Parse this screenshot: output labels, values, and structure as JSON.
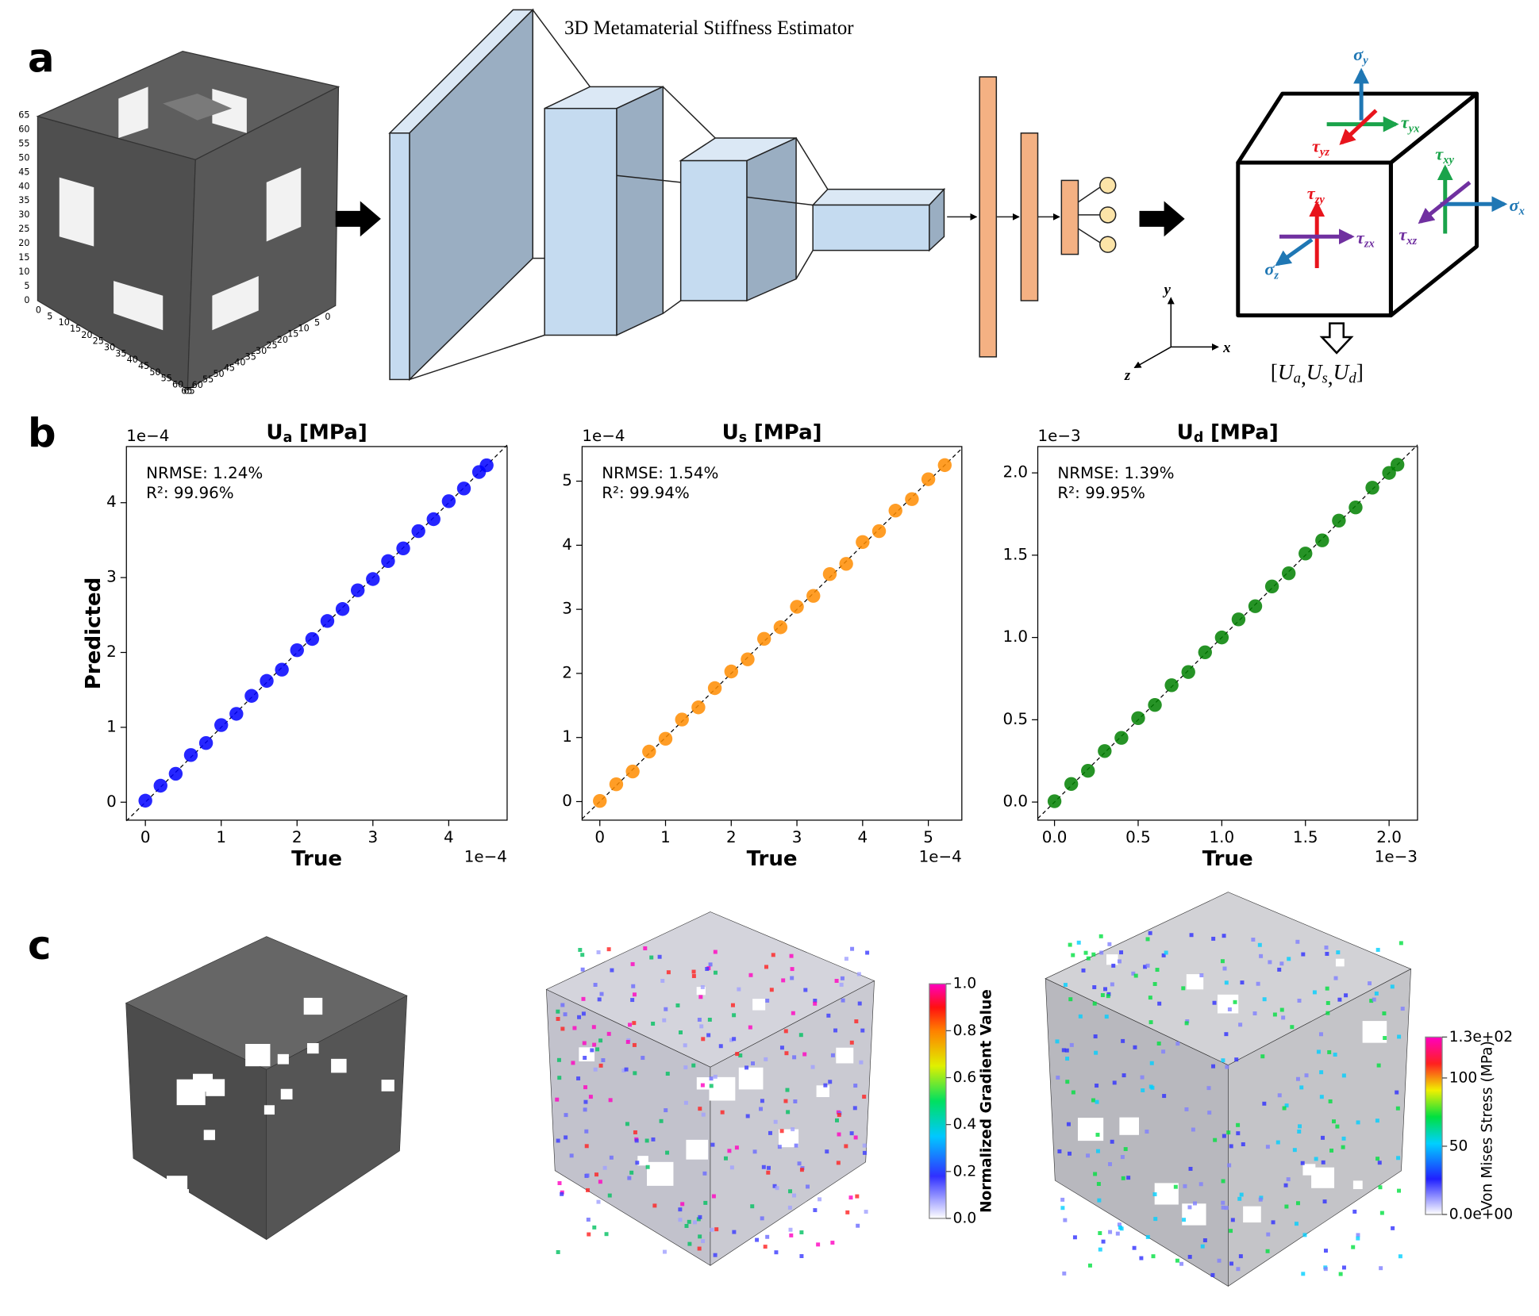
{
  "panel_a": {
    "label": "a",
    "network_title": "3D Metamaterial Stiffness Estimator",
    "cube_ticks": [
      0,
      5,
      10,
      15,
      20,
      25,
      30,
      35,
      40,
      45,
      50,
      55,
      60,
      65
    ],
    "stress_labels": [
      {
        "sym": "σ",
        "sub": "y"
      },
      {
        "sym": "τ",
        "sub": "yx"
      },
      {
        "sym": "τ",
        "sub": "yz"
      },
      {
        "sym": "τ",
        "sub": "xy"
      },
      {
        "sym": "σ",
        "sub": "x"
      },
      {
        "sym": "τ",
        "sub": "xz"
      },
      {
        "sym": "τ",
        "sub": "zy"
      },
      {
        "sym": "τ",
        "sub": "zx"
      },
      {
        "sym": "σ",
        "sub": "z"
      }
    ],
    "axes": [
      "x",
      "y",
      "z"
    ],
    "output": {
      "prefix": "[",
      "terms": [
        {
          "sym": "U",
          "sub": "a"
        },
        {
          "sym": "U",
          "sub": "s"
        },
        {
          "sym": "U",
          "sub": "d"
        }
      ],
      "separator": ",",
      "suffix": "]"
    }
  },
  "panel_b": {
    "label": "b"
  },
  "chart_data": [
    {
      "type": "scatter",
      "title": {
        "base": "U",
        "sub": "a",
        "unit": "[MPa]"
      },
      "xlabel": "True",
      "ylabel": "Predicted",
      "x_offset_label": "1e−4",
      "y_offset_label": "1e−4",
      "annotations": [
        "NRMSE: 1.24%",
        "R²: 99.96%"
      ],
      "color": "#0000ff",
      "x": [
        0,
        0.2,
        0.4,
        0.6,
        0.8,
        1.0,
        1.2,
        1.4,
        1.6,
        1.8,
        2.0,
        2.2,
        2.4,
        2.6,
        2.8,
        3.0,
        3.2,
        3.4,
        3.6,
        3.8,
        4.0,
        4.2,
        4.4,
        4.5
      ],
      "values": [
        0.02,
        0.22,
        0.38,
        0.63,
        0.79,
        1.03,
        1.18,
        1.42,
        1.62,
        1.77,
        2.03,
        2.18,
        2.42,
        2.58,
        2.83,
        2.98,
        3.22,
        3.39,
        3.62,
        3.78,
        4.02,
        4.19,
        4.41,
        4.5
      ],
      "xlim": [
        -0.25,
        4.77
      ],
      "ylim": [
        -0.24,
        4.75
      ],
      "xticks": [
        0,
        1,
        2,
        3,
        4
      ],
      "yticks": [
        0,
        1,
        2,
        3,
        4
      ]
    },
    {
      "type": "scatter",
      "title": {
        "base": "U",
        "sub": "s",
        "unit": "[MPa]"
      },
      "xlabel": "True",
      "x_offset_label": "1e−4",
      "y_offset_label": "1e−4",
      "annotations": [
        "NRMSE: 1.54%",
        "R²: 99.94%"
      ],
      "color": "#ff8c00",
      "x": [
        0,
        0.25,
        0.5,
        0.75,
        1,
        1.25,
        1.5,
        1.75,
        2,
        2.25,
        2.5,
        2.75,
        3,
        3.25,
        3.5,
        3.75,
        4,
        4.25,
        4.5,
        4.75,
        5,
        5.25
      ],
      "values": [
        0.01,
        0.27,
        0.47,
        0.78,
        0.98,
        1.28,
        1.47,
        1.77,
        2.03,
        2.22,
        2.54,
        2.72,
        3.04,
        3.21,
        3.55,
        3.71,
        4.05,
        4.22,
        4.54,
        4.72,
        5.03,
        5.25
      ],
      "xlim": [
        -0.27,
        5.51
      ],
      "ylim": [
        -0.29,
        5.54
      ],
      "xticks": [
        0,
        1,
        2,
        3,
        4,
        5
      ],
      "yticks": [
        0,
        1,
        2,
        3,
        4,
        5
      ]
    },
    {
      "type": "scatter",
      "title": {
        "base": "U",
        "sub": "d",
        "unit": "[MPa]"
      },
      "xlabel": "True",
      "x_offset_label": "1e−3",
      "y_offset_label": "1e−3",
      "annotations": [
        "NRMSE: 1.39%",
        "R²: 99.95%"
      ],
      "color": "#008000",
      "x": [
        0,
        0.1,
        0.2,
        0.3,
        0.4,
        0.5,
        0.6,
        0.7,
        0.8,
        0.9,
        1.0,
        1.1,
        1.2,
        1.3,
        1.4,
        1.5,
        1.6,
        1.7,
        1.8,
        1.9,
        2.0,
        2.05
      ],
      "values": [
        0.005,
        0.11,
        0.19,
        0.31,
        0.39,
        0.51,
        0.59,
        0.71,
        0.79,
        0.91,
        1.0,
        1.11,
        1.19,
        1.31,
        1.39,
        1.51,
        1.59,
        1.71,
        1.79,
        1.91,
        2.0,
        2.05
      ],
      "xlim": [
        -0.1,
        2.17
      ],
      "ylim": [
        -0.11,
        2.16
      ],
      "xticks": [
        {
          "value": 0,
          "label": "0.0"
        },
        0.5,
        {
          "value": 1,
          "label": "1.0"
        },
        1.5,
        {
          "value": 2,
          "label": "2.0"
        }
      ],
      "yticks": [
        {
          "value": 0,
          "label": "0.0"
        },
        0.5,
        {
          "value": 1,
          "label": "1.0"
        },
        1.5,
        {
          "value": 2,
          "label": "2.0"
        }
      ]
    }
  ],
  "panel_c": {
    "label": "c",
    "colorbars": [
      {
        "title": "Normalized Gradient Value",
        "lim": [
          0,
          1
        ],
        "ticks": [
          {
            "value": 0,
            "label": "0.0"
          },
          0.2,
          0.4,
          0.6,
          0.8,
          {
            "value": 1,
            "label": "1.0"
          }
        ]
      },
      {
        "title": "Von Mises Stress (MPa)",
        "lim": [
          0,
          130
        ],
        "ticks": [
          {
            "value": 0,
            "label": "0.0e+00"
          },
          50,
          100,
          {
            "value": 130,
            "label": "1.3e+02"
          }
        ]
      }
    ]
  }
}
